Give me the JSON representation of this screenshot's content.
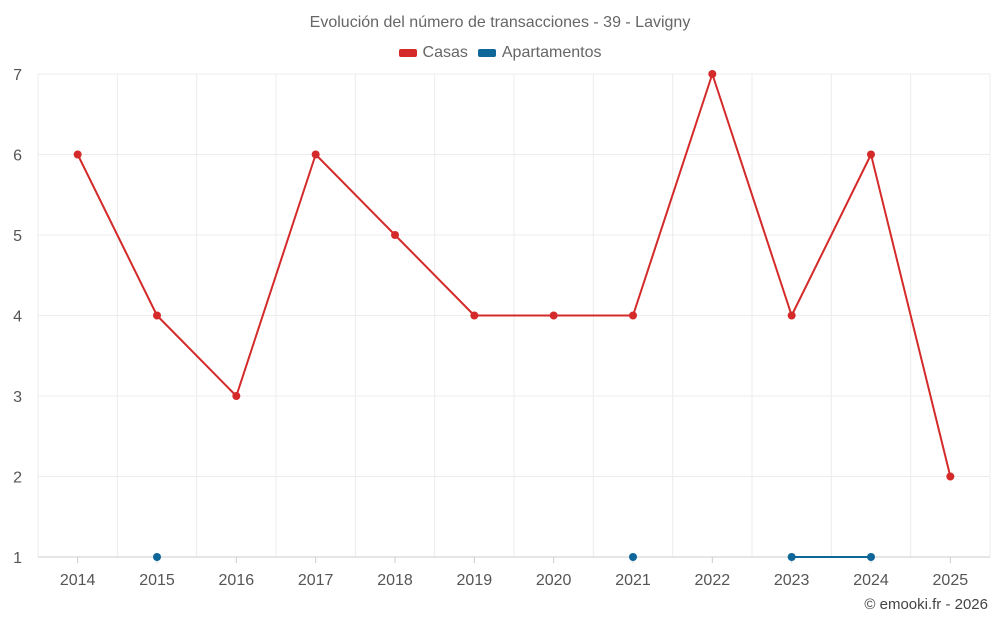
{
  "chart_data": {
    "type": "line",
    "title": "Evolución del número de transacciones - 39 - Lavigny",
    "categories": [
      "2014",
      "2015",
      "2016",
      "2017",
      "2018",
      "2019",
      "2020",
      "2021",
      "2022",
      "2023",
      "2024",
      "2025"
    ],
    "yticks": [
      1,
      2,
      3,
      4,
      5,
      6,
      7
    ],
    "ylim": [
      1,
      7
    ],
    "grid": true,
    "legend_position": "top-center",
    "series": [
      {
        "name": "Casas",
        "color": "#d42a2a",
        "values": [
          6,
          4,
          3,
          6,
          5,
          4,
          4,
          4,
          7,
          4,
          6,
          2
        ]
      },
      {
        "name": "Apartamentos",
        "color": "#0e6699",
        "values": [
          null,
          1,
          null,
          null,
          null,
          null,
          null,
          1,
          null,
          1,
          1,
          null
        ]
      }
    ]
  },
  "credit": "© emooki.fr - 2026"
}
